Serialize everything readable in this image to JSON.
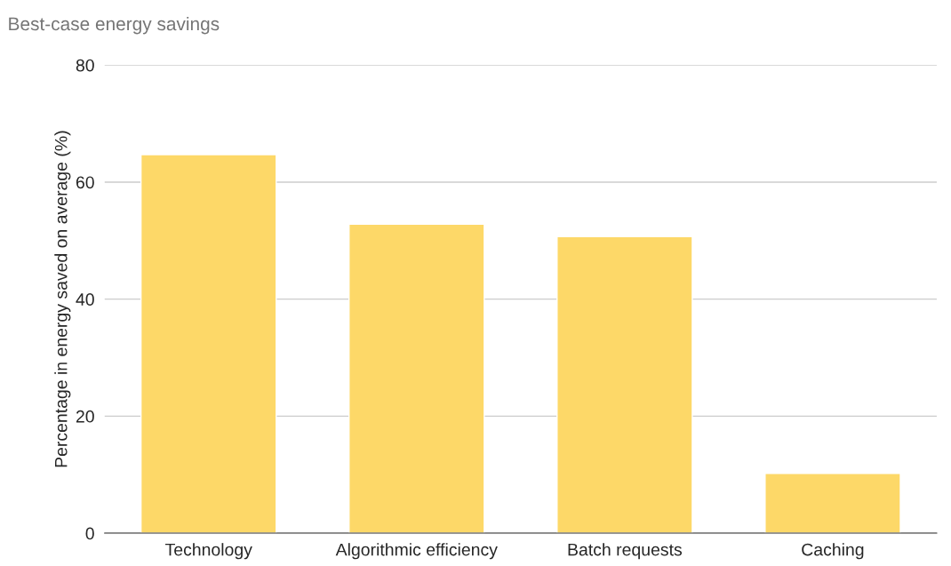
{
  "chart_data": {
    "type": "bar",
    "title": "Best-case energy savings",
    "ylabel": "Percentage in energy saved on average (%)",
    "categories": [
      "Technology",
      "Algorithmic efficiency",
      "Batch requests",
      "Caching"
    ],
    "values": [
      64.7,
      52.8,
      50.7,
      10.2
    ],
    "color": "#fdd868",
    "ylim": [
      0,
      80
    ],
    "yticks": [
      0,
      20,
      40,
      60,
      80
    ],
    "grid": "y"
  }
}
